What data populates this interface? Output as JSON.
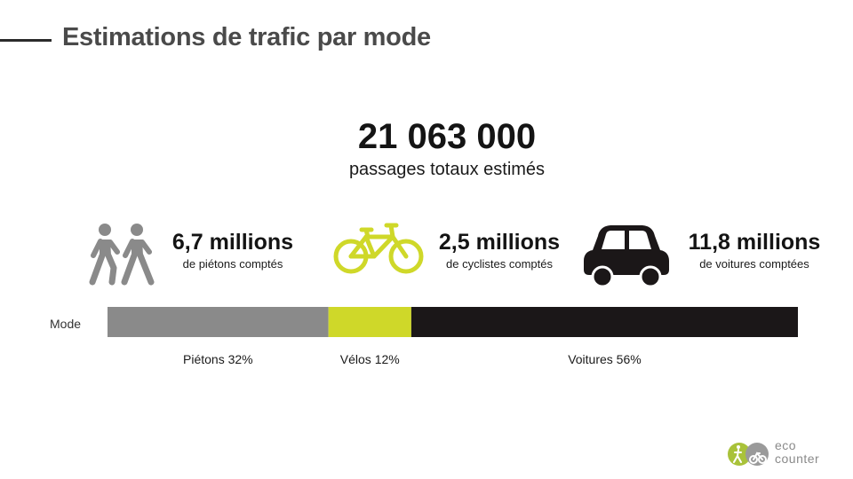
{
  "title": "Estimations de trafic par mode",
  "total": {
    "value": "21 063 000",
    "label": "passages totaux estimés"
  },
  "stats": [
    {
      "icon": "pedestrians-icon",
      "value": "6,7 millions",
      "label": "de piétons comptés"
    },
    {
      "icon": "bicycle-icon",
      "value": "2,5 millions",
      "label": "de cyclistes comptés"
    },
    {
      "icon": "car-icon",
      "value": "11,8 millions",
      "label": "de voitures comptées"
    }
  ],
  "logo": {
    "line1": "eco",
    "line2": "counter"
  },
  "colors": {
    "pedestrians": "#8a8a8a",
    "bikes": "#cfd829",
    "cars": "#1b1718"
  },
  "chart_data": {
    "type": "bar",
    "stacked": true,
    "orientation": "horizontal",
    "categories": [
      "Mode"
    ],
    "series": [
      {
        "name": "Piétons",
        "values": [
          32
        ],
        "label": "Piétons 32%"
      },
      {
        "name": "Vélos",
        "values": [
          12
        ],
        "label": "Vélos 12%"
      },
      {
        "name": "Voitures",
        "values": [
          56
        ],
        "label": "Voitures 56%"
      }
    ],
    "xlim": [
      0,
      100
    ],
    "unit": "%",
    "grid": false,
    "legend": "none"
  }
}
